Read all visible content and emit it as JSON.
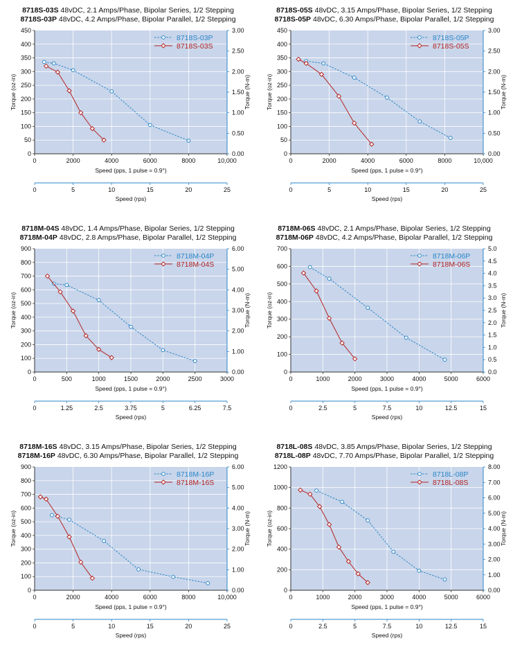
{
  "colors": {
    "plot_bg": "#c8d5ea",
    "p_series": "#2b86c8",
    "s_series": "#b42424",
    "axis": "#333333",
    "rps_axis": "#2b86c8",
    "grid": "#ffffff"
  },
  "chart_data": [
    {
      "type": "line",
      "title_lines": [
        {
          "model": "8718S-03S",
          "spec": "48vDC, 2.1 Amps/Phase, Bipolar Series, 1/2 Stepping"
        },
        {
          "model": "8718S-03P",
          "spec": "48vDC, 4.2 Amps/Phase, Bipolar Parallel, 1/2 Stepping"
        }
      ],
      "xlabel": "Speed (pps, 1 pulse = 0.9°)",
      "ylabel_left": "Torque (oz-in)",
      "ylabel_right": "Torque (N-m)",
      "x2label": "Speed (rps)",
      "xlim": [
        0,
        10000
      ],
      "xticks": [
        0,
        2000,
        4000,
        6000,
        8000,
        10000
      ],
      "xtick_labels": [
        "0",
        "2000",
        "4000",
        "6000",
        "8000",
        "10,000"
      ],
      "ylim": [
        0,
        450
      ],
      "yticks": [
        0,
        50,
        100,
        150,
        200,
        250,
        300,
        350,
        400,
        450
      ],
      "y2lim": [
        0,
        3
      ],
      "y2ticks": [
        "0.00",
        "0.50",
        "1.00",
        "1.50",
        "2.00",
        "2.50",
        "3.00"
      ],
      "x2lim": [
        0,
        25
      ],
      "x2ticks": [
        "0",
        "5",
        "10",
        "15",
        "20",
        "25"
      ],
      "legend_position": "top-right",
      "series": [
        {
          "name": "8718S-03P",
          "marker": "circle",
          "style": "dashed",
          "x": [
            500,
            1000,
            2000,
            4000,
            6000,
            8000
          ],
          "y": [
            335,
            330,
            305,
            228,
            105,
            48
          ]
        },
        {
          "name": "8718S-03S",
          "marker": "diamond",
          "style": "solid",
          "x": [
            600,
            1200,
            1800,
            2400,
            3000,
            3600
          ],
          "y": [
            320,
            298,
            230,
            150,
            92,
            50
          ]
        }
      ]
    },
    {
      "type": "line",
      "title_lines": [
        {
          "model": "8718S-05S",
          "spec": "48vDC, 3.15 Amps/Phase, Bipolar Series, 1/2 Stepping"
        },
        {
          "model": "8718S-05P",
          "spec": "48vDC, 6.30 Amps/Phase, Bipolar Parallel, 1/2 Stepping"
        }
      ],
      "xlabel": "Speed (pps, 1 pulse = 0.9°)",
      "ylabel_left": "Torque (oz-in)",
      "ylabel_right": "Torque (N-m)",
      "x2label": "Speed (rps)",
      "xlim": [
        0,
        10000
      ],
      "xticks": [
        0,
        2000,
        4000,
        6000,
        8000,
        10000
      ],
      "xtick_labels": [
        "0",
        "2000",
        "4000",
        "6000",
        "8000",
        "10,000"
      ],
      "ylim": [
        0,
        450
      ],
      "yticks": [
        0,
        50,
        100,
        150,
        200,
        250,
        300,
        350,
        400,
        450
      ],
      "y2lim": [
        0,
        3
      ],
      "y2ticks": [
        "0.00",
        "0.50",
        "1.00",
        "1.50",
        "2.00",
        "2.50",
        "3.00"
      ],
      "x2lim": [
        0,
        25
      ],
      "x2ticks": [
        "0",
        "5",
        "10",
        "15",
        "20",
        "25"
      ],
      "legend_position": "top-right",
      "series": [
        {
          "name": "8718S-05P",
          "marker": "circle",
          "style": "dashed",
          "x": [
            800,
            1700,
            3300,
            5000,
            6700,
            8300
          ],
          "y": [
            338,
            330,
            278,
            205,
            118,
            58
          ]
        },
        {
          "name": "8718S-05S",
          "marker": "diamond",
          "style": "solid",
          "x": [
            400,
            800,
            1600,
            2500,
            3300,
            4200
          ],
          "y": [
            345,
            330,
            290,
            210,
            112,
            35
          ]
        }
      ]
    },
    {
      "type": "line",
      "title_lines": [
        {
          "model": "8718M-04S",
          "spec": "48vDC, 1.4 Amps/Phase, Bipolar Series, 1/2 Stepping"
        },
        {
          "model": "8718M-04P",
          "spec": "48vDC, 2.8 Amps/Phase, Bipolar Parallel, 1/2 Stepping"
        }
      ],
      "xlabel": "Speed (pps, 1 pulse = 0.9°)",
      "ylabel_left": "Torque (oz-in)",
      "ylabel_right": "Torque (N-m)",
      "x2label": "Speed (rps)",
      "xlim": [
        0,
        3000
      ],
      "xticks": [
        0,
        500,
        1000,
        1500,
        2000,
        2500,
        3000
      ],
      "xtick_labels": [
        "0",
        "500",
        "1000",
        "1500",
        "2000",
        "2500",
        "3000"
      ],
      "ylim": [
        0,
        900
      ],
      "yticks": [
        0,
        100,
        200,
        300,
        400,
        500,
        600,
        700,
        800,
        900
      ],
      "y2lim": [
        0,
        6
      ],
      "y2ticks": [
        "0.00",
        "1.00",
        "2.00",
        "3.00",
        "4.00",
        "5.00",
        "6.00"
      ],
      "x2lim": [
        0,
        7.5
      ],
      "x2ticks": [
        "0",
        "1.25",
        "2.5",
        "3.75",
        "5",
        "6.25",
        "7.5"
      ],
      "legend_position": "top-right",
      "series": [
        {
          "name": "8718M-04P",
          "marker": "circle",
          "style": "dashed",
          "x": [
            300,
            500,
            1000,
            1500,
            2000,
            2500
          ],
          "y": [
            645,
            635,
            525,
            330,
            160,
            80
          ]
        },
        {
          "name": "8718M-04S",
          "marker": "diamond",
          "style": "solid",
          "x": [
            200,
            400,
            600,
            800,
            1000,
            1200
          ],
          "y": [
            700,
            585,
            445,
            265,
            165,
            105
          ]
        }
      ]
    },
    {
      "type": "line",
      "title_lines": [
        {
          "model": "8718M-06S",
          "spec": "48vDC, 2.1 Amps/Phase, Bipolar Series, 1/2 Stepping"
        },
        {
          "model": "8718M-06P",
          "spec": "48vDC, 4.2 Amps/Phase, Bipolar Parallel, 1/2 Stepping"
        }
      ],
      "xlabel": "Speed (pps, 1 pulse = 0.9°)",
      "ylabel_left": "Torque (oz-in)",
      "ylabel_right": "Torque (N-m)",
      "x2label": "Speed (rps)",
      "xlim": [
        0,
        6000
      ],
      "xticks": [
        0,
        1000,
        2000,
        3000,
        4000,
        5000,
        6000
      ],
      "xtick_labels": [
        "0",
        "1000",
        "2000",
        "3000",
        "4000",
        "5000",
        "6000"
      ],
      "ylim": [
        0,
        700
      ],
      "yticks": [
        0,
        100,
        200,
        300,
        400,
        500,
        600,
        700
      ],
      "y2lim": [
        0,
        5
      ],
      "y2ticks": [
        "0.0",
        "0.5",
        "1.0",
        "1.5",
        "2.0",
        "2.5",
        "3.0",
        "3.5",
        "4.0",
        "4.5",
        "5.0"
      ],
      "x2lim": [
        0,
        15
      ],
      "x2ticks": [
        "0",
        "2.5",
        "5",
        "7.5",
        "10",
        "12.5",
        "15"
      ],
      "legend_position": "top-right",
      "series": [
        {
          "name": "8718M-06P",
          "marker": "circle",
          "style": "dashed",
          "x": [
            600,
            1200,
            2400,
            3600,
            4800
          ],
          "y": [
            595,
            530,
            365,
            195,
            70
          ]
        },
        {
          "name": "8718M-06S",
          "marker": "diamond",
          "style": "solid",
          "x": [
            400,
            800,
            1200,
            1600,
            2000
          ],
          "y": [
            562,
            460,
            305,
            165,
            75
          ]
        }
      ]
    },
    {
      "type": "line",
      "title_lines": [
        {
          "model": "8718M-16S",
          "spec": "48vDC, 3.15 Amps/Phase, Bipolar Series, 1/2 Stepping"
        },
        {
          "model": "8718M-16P",
          "spec": "48vDC, 6.30 Amps/Phase, Bipolar Parallel, 1/2 Stepping"
        }
      ],
      "xlabel": "Speed (pps, 1 pulse = 0.9°)",
      "ylabel_left": "Torque (oz-in)",
      "ylabel_right": "Torque (N-m)",
      "x2label": "Speed (rps)",
      "xlim": [
        0,
        10000
      ],
      "xticks": [
        0,
        2000,
        4000,
        6000,
        8000,
        10000
      ],
      "xtick_labels": [
        "0",
        "2000",
        "4000",
        "6000",
        "8000",
        "10,000"
      ],
      "ylim": [
        0,
        900
      ],
      "yticks": [
        0,
        100,
        200,
        300,
        400,
        500,
        600,
        700,
        800,
        900
      ],
      "y2lim": [
        0,
        6
      ],
      "y2ticks": [
        "0.00",
        "1.00",
        "2.00",
        "3.00",
        "4.00",
        "5.00",
        "6.00"
      ],
      "x2lim": [
        0,
        25
      ],
      "x2ticks": [
        "0",
        "5",
        "10",
        "15",
        "20",
        "25"
      ],
      "legend_position": "top-right",
      "series": [
        {
          "name": "8718M-16P",
          "marker": "circle",
          "style": "dashed",
          "x": [
            900,
            1800,
            3600,
            5400,
            7200,
            9000
          ],
          "y": [
            548,
            515,
            360,
            152,
            98,
            52
          ]
        },
        {
          "name": "8718M-16S",
          "marker": "diamond",
          "style": "solid",
          "x": [
            300,
            600,
            1200,
            1800,
            2400,
            3000
          ],
          "y": [
            682,
            665,
            540,
            390,
            205,
            88
          ]
        }
      ]
    },
    {
      "type": "line",
      "title_lines": [
        {
          "model": "8718L-08S",
          "spec": "48vDC, 3.85 Amps/Phase, Bipolar Series, 1/2 Stepping"
        },
        {
          "model": "8718L-08P",
          "spec": "48vDC, 7.70 Amps/Phase, Bipolar Parallel, 1/2 Stepping"
        }
      ],
      "xlabel": "Speed (pps, 1 pulse = 0.9°)",
      "ylabel_left": "Torque (oz-in)",
      "ylabel_right": "Torque (N-m)",
      "x2label": "Speed (rps)",
      "xlim": [
        0,
        6000
      ],
      "xticks": [
        0,
        1000,
        2000,
        3000,
        4000,
        5000,
        6000
      ],
      "xtick_labels": [
        "0",
        "1000",
        "2000",
        "3000",
        "4000",
        "5000",
        "6000"
      ],
      "ylim": [
        0,
        1200
      ],
      "yticks": [
        0,
        200,
        400,
        600,
        800,
        1000,
        1200
      ],
      "y2lim": [
        0,
        8
      ],
      "y2ticks": [
        "0.00",
        "1.00",
        "2.00",
        "3.00",
        "4.00",
        "5.00",
        "6.00",
        "7.00",
        "8.00"
      ],
      "x2lim": [
        0,
        15
      ],
      "x2ticks": [
        "0",
        "2.5",
        "5",
        "7.5",
        "10",
        "12.5",
        "15"
      ],
      "legend_position": "top-right",
      "series": [
        {
          "name": "8718L-08P",
          "marker": "circle",
          "style": "dashed",
          "x": [
            800,
            1600,
            2400,
            3200,
            4000,
            4800
          ],
          "y": [
            970,
            860,
            680,
            375,
            190,
            105
          ]
        },
        {
          "name": "8718L-08S",
          "marker": "diamond",
          "style": "solid",
          "x": [
            300,
            600,
            900,
            1200,
            1500,
            1800,
            2100,
            2400
          ],
          "y": [
            975,
            935,
            815,
            640,
            420,
            280,
            160,
            75
          ]
        }
      ]
    }
  ]
}
